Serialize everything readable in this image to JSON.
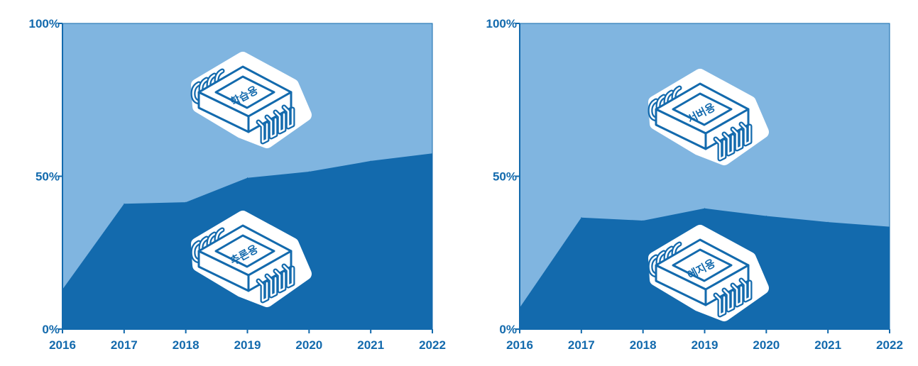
{
  "colors": {
    "upper": "#80b5e0",
    "lower": "#136aad",
    "axis": "#136aad",
    "label": "#136aad",
    "chip_stroke": "#136aad",
    "chip_fill": "#ffffff"
  },
  "chart_data": [
    {
      "type": "area",
      "x": [
        2016,
        2017,
        2018,
        2019,
        2020,
        2021,
        2022
      ],
      "x_tick_labels": [
        "2016",
        "2017",
        "2018",
        "2019",
        "2020",
        "2021",
        "2022"
      ],
      "y_tick_labels": [
        "0%",
        "50%",
        "100%"
      ],
      "ylim": [
        0,
        100
      ],
      "stacked": true,
      "series": [
        {
          "name": "추론용",
          "values": [
            13,
            41,
            41.5,
            49.5,
            51.5,
            55,
            57.5
          ]
        },
        {
          "name": "학습용",
          "values": [
            87,
            59,
            58.5,
            50.5,
            48.5,
            45,
            42.5
          ]
        }
      ],
      "annotations": [
        {
          "text": "학습용",
          "series": 1
        },
        {
          "text": "추론용",
          "series": 0
        }
      ]
    },
    {
      "type": "area",
      "x": [
        2016,
        2017,
        2018,
        2019,
        2020,
        2021,
        2022
      ],
      "x_tick_labels": [
        "2016",
        "2017",
        "2018",
        "2019",
        "2020",
        "2021",
        "2022"
      ],
      "y_tick_labels": [
        "0%",
        "50%",
        "100%"
      ],
      "ylim": [
        0,
        100
      ],
      "stacked": true,
      "series": [
        {
          "name": "에지용",
          "values": [
            7,
            36.5,
            35.5,
            39.5,
            37,
            35,
            33.5
          ]
        },
        {
          "name": "서버용",
          "values": [
            93,
            63.5,
            64.5,
            60.5,
            63,
            65,
            66.5
          ]
        }
      ],
      "annotations": [
        {
          "text": "서버용",
          "series": 1
        },
        {
          "text": "에지용",
          "series": 0
        }
      ]
    }
  ]
}
